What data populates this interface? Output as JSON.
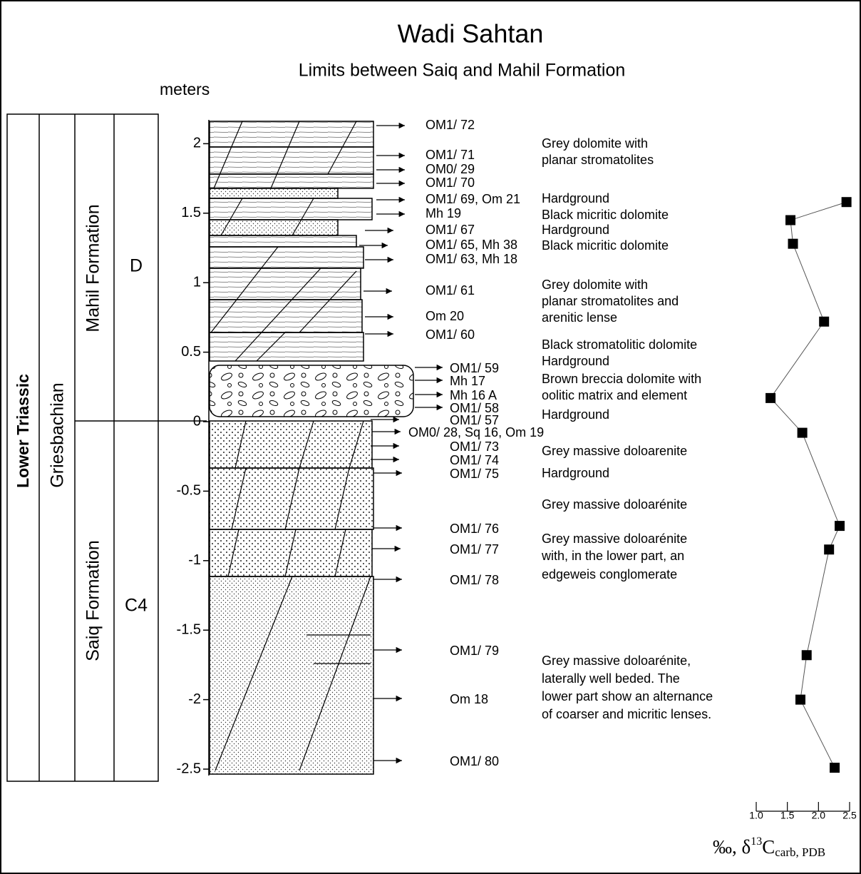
{
  "title": "Wadi Sahtan",
  "subtitle": "Limits between Saiq and Mahil Formation",
  "depth_axis": {
    "label": "meters",
    "ylim": [
      -2.5,
      2.1
    ],
    "ticks": [
      2,
      1.5,
      1,
      0.5,
      0,
      -0.5,
      -1,
      -1.5,
      -2,
      -2.5
    ]
  },
  "units": {
    "system": "Lower Triassic",
    "stage": "Griesbachian",
    "formations": [
      "Mahil Formation",
      "Saiq Formation"
    ],
    "members": [
      "D",
      "C4"
    ]
  },
  "samples": [
    "OM1/ 72",
    "OM1/ 71",
    "OM0/ 29",
    "OM1/ 70",
    "OM1/ 69, Om 21",
    "Mh 19",
    "OM1/ 67",
    "OM1/ 65, Mh 38",
    "OM1/ 63, Mh 18",
    "OM1/ 61",
    "Om 20",
    "OM1/ 60",
    "OM1/ 59",
    "Mh 17",
    "Mh 16 A",
    "OM1/ 58",
    "OM1/ 57",
    "OM0/ 28, Sq 16, Om 19",
    "OM1/ 73",
    "OM1/ 74",
    "OM1/ 75",
    "OM1/ 76",
    "OM1/ 77",
    "OM1/ 78",
    "OM1/ 79",
    "Om 18",
    "OM1/ 80"
  ],
  "descriptions": [
    [
      "Grey dolomite with",
      "planar stromatolites"
    ],
    [
      "Hardground"
    ],
    [
      "Black micritic dolomite"
    ],
    [
      "Hardground"
    ],
    [
      "Black micritic dolomite"
    ],
    [
      "Grey dolomite with",
      "planar stromatolites and",
      "arenitic lense"
    ],
    [
      "Black stromatolitic dolomite"
    ],
    [
      "Hardground"
    ],
    [
      "Brown breccia dolomite with",
      "oolitic matrix and element"
    ],
    [
      "Hardground"
    ],
    [
      "Grey massive doloarenite"
    ],
    [
      "Hardground"
    ],
    [
      "Grey massive doloarénite"
    ],
    [
      "Grey massive doloarénite",
      "with, in the lower part, an",
      "edgeweis conglomerate"
    ],
    [
      "Grey massive doloarénite,",
      "laterally well beded. The",
      "lower part show an alternance",
      "of coarser and micritic lenses."
    ]
  ],
  "isotope": {
    "label_parts": [
      "‰, δ",
      "13",
      "C",
      "carb, PDB"
    ],
    "xlim": [
      1.0,
      2.5
    ],
    "xticks": [
      {
        "value": 1.0,
        "label": "1.0"
      },
      1.5,
      {
        "value": 2.0,
        "label": "2.0"
      },
      2.5
    ],
    "values": [
      2.45,
      1.55,
      1.59,
      2.09,
      1.23,
      1.74,
      2.34,
      2.17,
      1.81,
      1.71,
      2.26
    ],
    "depths": [
      1.58,
      1.45,
      1.28,
      0.72,
      0.17,
      -0.08,
      -0.75,
      -0.92,
      -1.68,
      -2.0,
      -2.49
    ]
  }
}
